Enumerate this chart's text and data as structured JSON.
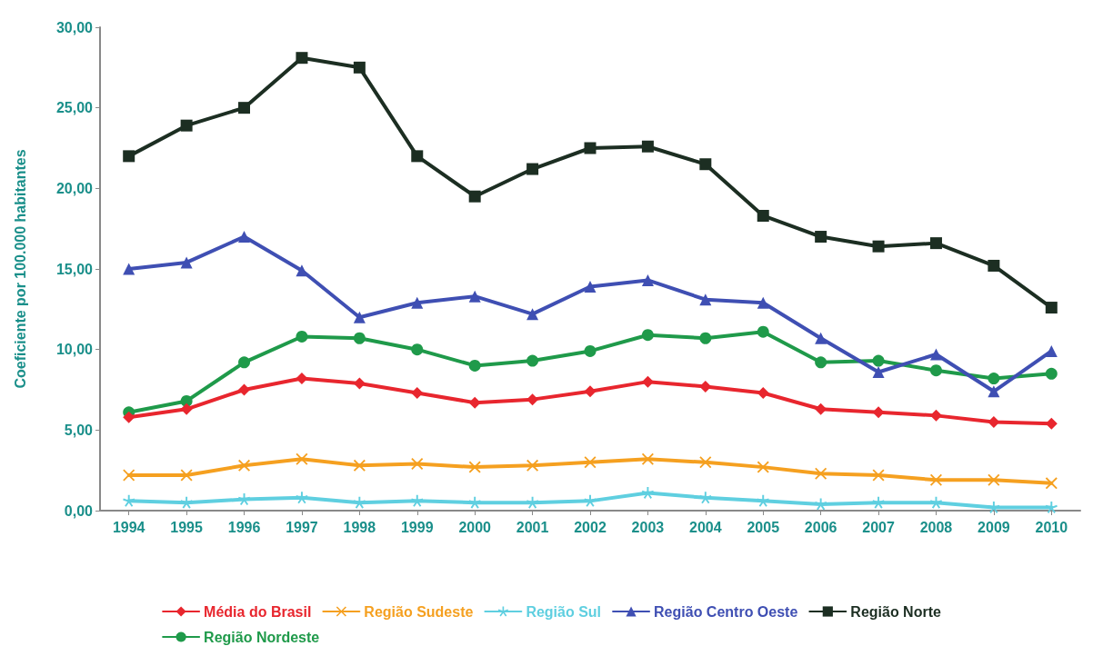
{
  "chart_data": {
    "type": "line",
    "ylabel": "Coeficiente por 100.000 habitantes",
    "categories": [
      "1994",
      "1995",
      "1996",
      "1997",
      "1998",
      "1999",
      "2000",
      "2001",
      "2002",
      "2003",
      "2004",
      "2005",
      "2006",
      "2007",
      "2008",
      "2009",
      "2010"
    ],
    "series": [
      {
        "name": "Média do Brasil",
        "color": "#e8262e",
        "marker": "diamond",
        "values": [
          5.8,
          6.3,
          7.5,
          8.2,
          7.9,
          7.3,
          6.7,
          6.9,
          7.4,
          8.0,
          7.7,
          7.3,
          6.3,
          6.1,
          5.9,
          5.5,
          5.4
        ]
      },
      {
        "name": "Região Sudeste",
        "color": "#f5a020",
        "marker": "cross",
        "values": [
          2.2,
          2.2,
          2.8,
          3.2,
          2.8,
          2.9,
          2.7,
          2.8,
          3.0,
          3.2,
          3.0,
          2.7,
          2.3,
          2.2,
          1.9,
          1.9,
          1.7
        ]
      },
      {
        "name": "Região Sul",
        "color": "#5fcfe0",
        "marker": "star",
        "values": [
          0.6,
          0.5,
          0.7,
          0.8,
          0.5,
          0.6,
          0.5,
          0.5,
          0.6,
          1.1,
          0.8,
          0.6,
          0.4,
          0.5,
          0.5,
          0.2,
          0.2
        ]
      },
      {
        "name": "Região Centro Oeste",
        "color": "#3f4fb3",
        "marker": "triangle",
        "values": [
          15.0,
          15.4,
          17.0,
          14.9,
          12.0,
          12.9,
          13.3,
          12.2,
          13.9,
          14.3,
          13.1,
          12.9,
          10.7,
          8.6,
          9.7,
          7.4,
          9.9
        ]
      },
      {
        "name": "Região Norte",
        "color": "#1c2e22",
        "marker": "square",
        "values": [
          22.0,
          23.9,
          25.0,
          28.1,
          27.5,
          22.0,
          19.5,
          21.2,
          22.5,
          22.6,
          21.5,
          18.3,
          17.0,
          16.4,
          16.6,
          15.2,
          12.6
        ]
      },
      {
        "name": "Região Nordeste",
        "color": "#1f9a4a",
        "marker": "circle",
        "values": [
          6.1,
          6.8,
          9.2,
          10.8,
          10.7,
          10.0,
          9.0,
          9.3,
          9.9,
          10.9,
          10.7,
          11.1,
          9.2,
          9.3,
          8.7,
          8.2,
          8.5
        ]
      }
    ],
    "ylim": [
      0,
      30
    ],
    "yticks": [
      {
        "value": 0,
        "label": "0,00"
      },
      {
        "value": 5,
        "label": "5,00"
      },
      {
        "value": 10,
        "label": "10,00"
      },
      {
        "value": 15,
        "label": "15,00"
      },
      {
        "value": 20,
        "label": "20,00"
      },
      {
        "value": 25,
        "label": "25,00"
      },
      {
        "value": 30,
        "label": "30,00"
      }
    ],
    "grid": false,
    "legend": "bottom"
  }
}
